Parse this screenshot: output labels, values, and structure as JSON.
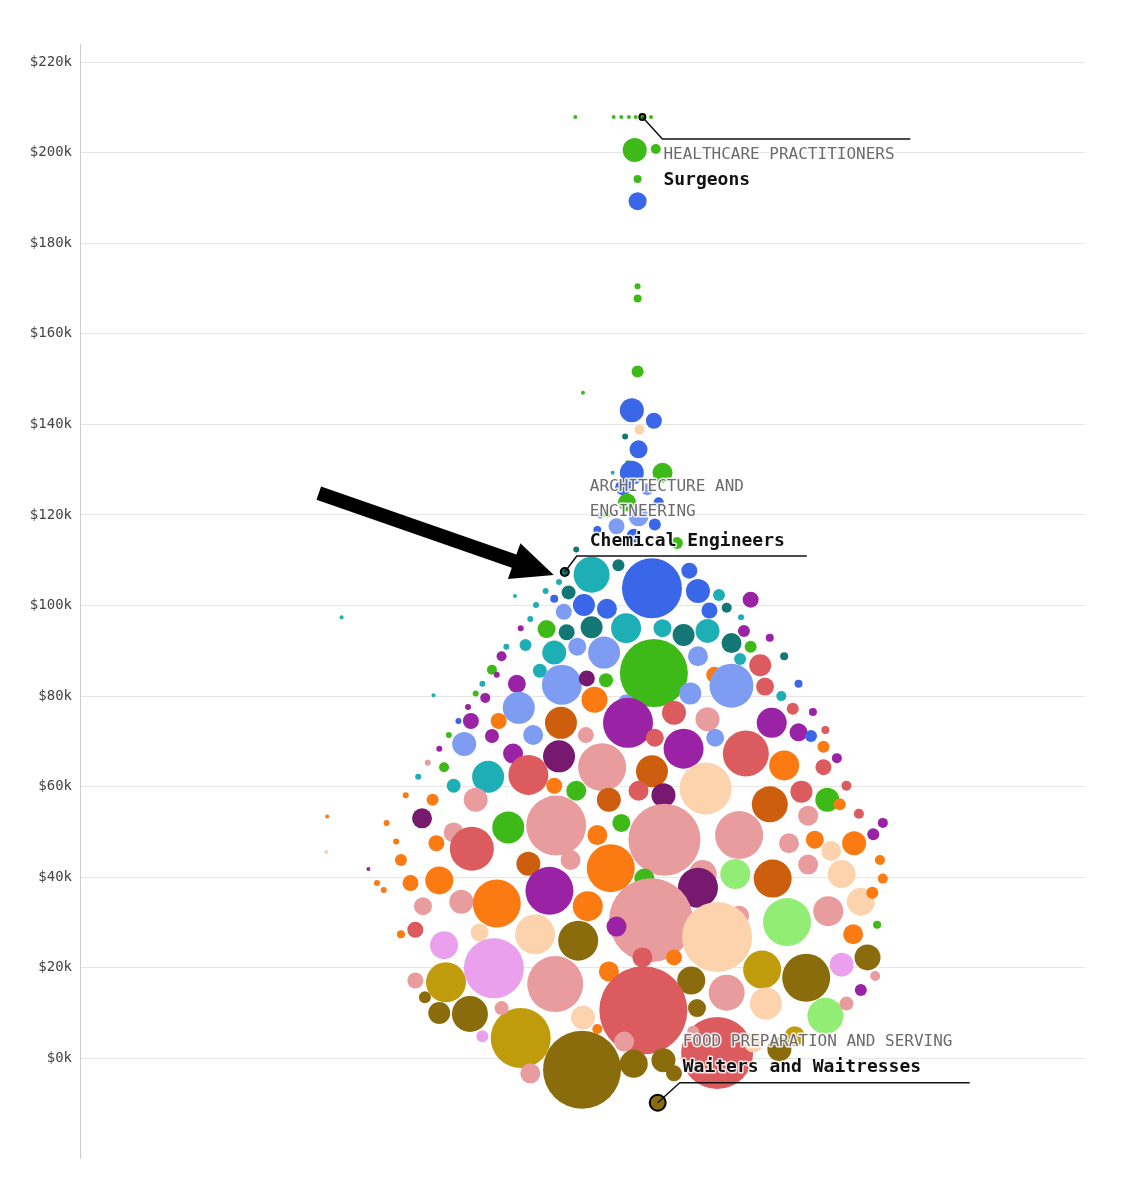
{
  "chart_data": {
    "type": "bubble",
    "grid": true,
    "tick_labels": "y",
    "xlim": [
      0,
      1049
    ],
    "ylim": [
      -22000,
      224000
    ],
    "yticks": [
      {
        "value": 0,
        "label": "$0k"
      },
      {
        "value": 20000,
        "label": "$20k"
      },
      {
        "value": 40000,
        "label": "$40k"
      },
      {
        "value": 60000,
        "label": "$60k"
      },
      {
        "value": 80000,
        "label": "$80k"
      },
      {
        "value": 100000,
        "label": "$100k"
      },
      {
        "value": 120000,
        "label": "$120k"
      },
      {
        "value": 140000,
        "label": "$140k"
      },
      {
        "value": 160000,
        "label": "$160k"
      },
      {
        "value": 180000,
        "label": "$180k"
      },
      {
        "value": 200000,
        "label": "$200k"
      },
      {
        "value": 220000,
        "label": "$220k"
      }
    ],
    "annotations": [
      {
        "category": "HEALTHCARE PRACTITIONERS",
        "label": "Surgeons",
        "x": 587,
        "y": 207900
      },
      {
        "category": "ARCHITECTURE AND ENGINEERING",
        "label": "Chemical Engineers",
        "x": 506,
        "y": 107400
      },
      {
        "category": "FOOD PREPARATION AND SERVING",
        "label": "Waiters and Waitresses",
        "x": 603,
        "y": -9800
      }
    ],
    "x": [
      517,
      557,
      565,
      573,
      580,
      596,
      587,
      579,
      601,
      582,
      582,
      582,
      582,
      582,
      525,
      576,
      599,
      584,
      569,
      583,
      572,
      576,
      608,
      556,
      567,
      592,
      604,
      571,
      543,
      550,
      583,
      560,
      600,
      540,
      578,
      518,
      623,
      562,
      534,
      597,
      506,
      636,
      645,
      510,
      495,
      526,
      550,
      505,
      476,
      454,
      667,
      657,
      675,
      700,
      534,
      570,
      487,
      508,
      608,
      630,
      655,
      693,
      680,
      465,
      519,
      547,
      599,
      645,
      700,
      495,
      440,
      689,
      710,
      480,
      662,
      503,
      430,
      456,
      549,
      529,
      680,
      715,
      637,
      537,
      570,
      620,
      458,
      423,
      732,
      744,
      502,
      437,
      408,
      572,
      655,
      722,
      528,
      473,
      401,
      430,
      600,
      630,
      663,
      750,
      763,
      695,
      500,
      545,
      452,
      776,
      426,
      468,
      597,
      380,
      735,
      776,
      653,
      609,
      583,
      518,
      552,
      495,
      390,
      413,
      368,
      720,
      753,
      780,
      760,
      793,
      497,
      610,
      447,
      540,
      390,
      357,
      565,
      688,
      808,
      740,
      409,
      372,
      767,
      784,
      828,
      335,
      554,
      468,
      512,
      723,
      795,
      684,
      650,
      375,
      345,
      589,
      645,
      760,
      815,
      781,
      490,
      435,
      530,
      398,
      358,
      596,
      738,
      827,
      560,
      688,
      665,
      475,
      520,
      380,
      417,
      350,
      807,
      822,
      432,
      496,
      712,
      758,
      716,
      638,
      675,
      382,
      552,
      587,
      795,
      620,
      778,
      588,
      460,
      407,
      375,
      524,
      665,
      470,
      578,
      609,
      746,
      730,
      703,
      420,
      525,
      644,
      568,
      273,
      369,
      258,
      257,
      301,
      310,
      317,
      335,
      320,
      330,
      340,
      353,
      363,
      375,
      385,
      395,
      405,
      413,
      420,
      435,
      445,
      460,
      470,
      486,
      500,
      690,
      720,
      735,
      750,
      765,
      778,
      790,
      800,
      813,
      838,
      835,
      838,
      832,
      830,
      815,
      800,
      440,
      350,
      360,
      620,
      540,
      640,
      603
    ],
    "values": [
      207900,
      207900,
      207900,
      207900,
      207900,
      207900,
      207900,
      200600,
      200800,
      194200,
      189300,
      170500,
      167800,
      151700,
      147000,
      143100,
      140800,
      138800,
      137300,
      134500,
      131400,
      129300,
      129300,
      129300,
      126100,
      125700,
      122800,
      122800,
      119900,
      120300,
      119700,
      117500,
      117900,
      116700,
      115400,
      112400,
      113800,
      108900,
      106800,
      103800,
      107400,
      107700,
      103200,
      102900,
      101500,
      100100,
      99300,
      98600,
      100100,
      102100,
      102300,
      98900,
      99500,
      101300,
      95200,
      95000,
      94800,
      94100,
      95000,
      93500,
      94400,
      94400,
      91700,
      91300,
      90900,
      89600,
      85100,
      88800,
      90900,
      89600,
      88800,
      88200,
      86800,
      85600,
      84700,
      82500,
      85800,
      82700,
      83500,
      83900,
      82300,
      82100,
      80600,
      79200,
      78600,
      76300,
      77400,
      79600,
      80000,
      77200,
      74100,
      74500,
      74500,
      74100,
      74900,
      74100,
      71400,
      71400,
      69400,
      71200,
      70800,
      68400,
      70800,
      72000,
      71200,
      67300,
      66700,
      64300,
      67300,
      68800,
      62200,
      62600,
      63400,
      64300,
      64700,
      64300,
      59600,
      58100,
      59100,
      59100,
      57100,
      60200,
      60200,
      57100,
      57100,
      56100,
      58900,
      57100,
      53600,
      56100,
      51400,
      48300,
      51000,
      49300,
      49900,
      53000,
      52000,
      49300,
      47500,
      47500,
      46300,
      47500,
      48300,
      45800,
      49500,
      43800,
      42000,
      43000,
      43800,
      39700,
      40700,
      40700,
      40700,
      39300,
      38700,
      39700,
      37700,
      42800,
      34600,
      32500,
      37000,
      34200,
      33600,
      34600,
      33600,
      30500,
      30100,
      36600,
      29100,
      31500,
      26800,
      27400,
      26000,
      25000,
      27800,
      28400,
      27400,
      22300,
      19900,
      16400,
      19600,
      17800,
      12100,
      17200,
      14500,
      16800,
      19200,
      22300,
      20700,
      22300,
      9400,
      10600,
      4500,
      9800,
      10000,
      -2500,
      1200,
      -3300,
      -1200,
      -400,
      4900,
      2000,
      3500,
      4900,
      9000,
      11100,
      3700,
      97400,
      80200,
      53400,
      45600,
      41800,
      38700,
      37200,
      27400,
      52000,
      47900,
      58100,
      62200,
      65300,
      68400,
      71400,
      74500,
      77600,
      80600,
      82700,
      84700,
      90900,
      95000,
      97000,
      103200,
      105200,
      97400,
      92900,
      88800,
      82700,
      76500,
      72500,
      66300,
      60200,
      54000,
      52000,
      43800,
      39700,
      29500,
      18200,
      15100,
      12100,
      11100,
      17200,
      13500,
      -3300,
      6500,
      5900,
      -9800
    ],
    "sizes": [
      2,
      2,
      2,
      2,
      2,
      2,
      3,
      12,
      5,
      4,
      9,
      3,
      4,
      6,
      2,
      12,
      8,
      5,
      3,
      9,
      3,
      12,
      10,
      2,
      8,
      6,
      5,
      9,
      3,
      4,
      10,
      8,
      6,
      4,
      7,
      3,
      6,
      6,
      18,
      30,
      4,
      8,
      12,
      7,
      4,
      11,
      10,
      8,
      3,
      2,
      6,
      8,
      5,
      8,
      11,
      15,
      9,
      8,
      9,
      11,
      12,
      6,
      10,
      6,
      9,
      16,
      34,
      10,
      6,
      12,
      5,
      6,
      11,
      7,
      8,
      20,
      5,
      9,
      7,
      8,
      22,
      9,
      11,
      13,
      8,
      12,
      16,
      5,
      5,
      6,
      16,
      8,
      8,
      25,
      12,
      15,
      8,
      10,
      12,
      7,
      9,
      20,
      9,
      9,
      6,
      23,
      16,
      24,
      10,
      6,
      16,
      20,
      16,
      5,
      15,
      8,
      26,
      12,
      10,
      10,
      12,
      8,
      7,
      12,
      6,
      18,
      11,
      12,
      10,
      6,
      30,
      36,
      16,
      10,
      10,
      10,
      9,
      24,
      12,
      10,
      22,
      8,
      9,
      10,
      6,
      6,
      24,
      12,
      10,
      19,
      14,
      15,
      14,
      14,
      8,
      10,
      20,
      10,
      14,
      15,
      24,
      24,
      15,
      12,
      9,
      42,
      24,
      6,
      10,
      10,
      35,
      20,
      20,
      14,
      9,
      8,
      10,
      13,
      30,
      28,
      19,
      24,
      16,
      14,
      18,
      20,
      10,
      10,
      12,
      8,
      18,
      44,
      30,
      18,
      11,
      39,
      36,
      10,
      14,
      12,
      10,
      12,
      10,
      6,
      12,
      9,
      10,
      2,
      2,
      2,
      2,
      2,
      3,
      3,
      4,
      3,
      3,
      3,
      3,
      3,
      3,
      3,
      3,
      3,
      3,
      3,
      3,
      3,
      3,
      3,
      3,
      3,
      3,
      4,
      4,
      4,
      4,
      4,
      5,
      5,
      5,
      5,
      5,
      5,
      4,
      5,
      6,
      7,
      7,
      8,
      6,
      8,
      5,
      6,
      8,
      33
    ],
    "colors": [
      "#3dba17",
      "#3dba17",
      "#3dba17",
      "#3dba17",
      "#3dba17",
      "#3dba17",
      "#3dba17",
      "#3dba17",
      "#3dba17",
      "#3dba17",
      "#3a66e8",
      "#3dba17",
      "#3dba17",
      "#3dba17",
      "#3dba17",
      "#3a66e8",
      "#3a66e8",
      "#fdd3ae",
      "#137775",
      "#3a66e8",
      "#3dba17",
      "#3a66e8",
      "#3dba17",
      "#1eafb6",
      "#3a66e8",
      "#7e9cf2",
      "#3a66e8",
      "#3dba17",
      "#3a66e8",
      "#3dba17",
      "#7e9cf2",
      "#7e9cf2",
      "#3a66e8",
      "#3a66e8",
      "#3a66e8",
      "#137775",
      "#3dba17",
      "#137775",
      "#1eafb6",
      "#3a66e8",
      "#137775",
      "#3a66e8",
      "#3a66e8",
      "#137775",
      "#3a66e8",
      "#3a66e8",
      "#3a66e8",
      "#7e9cf2",
      "#1eafb6",
      "#1eafb6",
      "#1eafb6",
      "#3a66e8",
      "#137775",
      "#9a22a5",
      "#137775",
      "#1eafb6",
      "#3dba17",
      "#137775",
      "#1eafb6",
      "#137775",
      "#1eafb6",
      "#9a22a5",
      "#137775",
      "#1eafb6",
      "#7e9cf2",
      "#7e9cf2",
      "#3dba17",
      "#7e9cf2",
      "#3dba17",
      "#1eafb6",
      "#9a22a5",
      "#1eafb6",
      "#db5b5f",
      "#1eafb6",
      "#fb7a12",
      "#7e9cf2",
      "#3dba17",
      "#9a22a5",
      "#3dba17",
      "#76196f",
      "#7e9cf2",
      "#db5b5f",
      "#7e9cf2",
      "#fb7a12",
      "#7e9cf2",
      "#db5b5f",
      "#7e9cf2",
      "#9a22a5",
      "#1eafb6",
      "#db5b5f",
      "#cc5e0d",
      "#fb7a12",
      "#9a22a5",
      "#9a22a5",
      "#e89c9e",
      "#9a22a5",
      "#e89c9e",
      "#7e9cf2",
      "#7e9cf2",
      "#9a22a5",
      "#db5b5f",
      "#9a22a5",
      "#7e9cf2",
      "#9a22a5",
      "#3a66e8",
      "#db5b5f",
      "#76196f",
      "#e89c9e",
      "#9a22a5",
      "#fb7a12",
      "#1eafb6",
      "#db5b5f",
      "#cc5e0d",
      "#3dba17",
      "#fb7a12",
      "#db5b5f",
      "#fdd3ae",
      "#76196f",
      "#db5b5f",
      "#3dba17",
      "#cc5e0d",
      "#fb7a12",
      "#1eafb6",
      "#e89c9e",
      "#fb7a12",
      "#cc5e0d",
      "#db5b5f",
      "#3dba17",
      "#e89c9e",
      "#fb7a12",
      "#e89c9e",
      "#e89c9e",
      "#3dba17",
      "#fb7a12",
      "#e89c9e",
      "#76196f",
      "#3dba17",
      "#e89c9e",
      "#fb7a12",
      "#e89c9e",
      "#db5b5f",
      "#fb7a12",
      "#fb7a12",
      "#fdd3ae",
      "#9a22a5",
      "#fb7a12",
      "#fb7a12",
      "#cc5e0d",
      "#e89c9e",
      "#cc5e0d",
      "#fdd3ae",
      "#92ed74",
      "#e89c9e",
      "#fb7a12",
      "#fb7a12",
      "#3dba17",
      "#76196f",
      "#e89c9e",
      "#fdd3ae",
      "#e89c9e",
      "#9a22a5",
      "#fb7a12",
      "#fb7a12",
      "#e89c9e",
      "#e89c9e",
      "#e89c9e",
      "#92ed74",
      "#fb7a12",
      "#9a22a5",
      "#e89c9e",
      "#fdd3ae",
      "#fdd3ae",
      "#8a6c0c",
      "#eaa0ec",
      "#fdd3ae",
      "#db5b5f",
      "#fb7a12",
      "#8a6c0c",
      "#eaa0ec",
      "#e89c9e",
      "#c09b0c",
      "#8a6c0c",
      "#fdd3ae",
      "#8a6c0c",
      "#e89c9e",
      "#c09b0c",
      "#fb7a12",
      "#db5b5f",
      "#eaa0ec",
      "#fb7a12",
      "#92ed74",
      "#db5b5f",
      "#c09b0c",
      "#8a6c0c",
      "#8a6c0c",
      "#8a6c0c",
      "#db5b5f",
      "#e89c9e",
      "#8a6c0c",
      "#8a6c0c",
      "#c09b0c",
      "#8a6c0c",
      "#fdd3ae",
      "#eaa0ec",
      "#fdd3ae",
      "#8a6c0c",
      "#e89c9e",
      "#1eafb6",
      "#1eafb6",
      "#fb7a12",
      "#fdd3ae",
      "#9a22a5",
      "#fb7a12",
      "#fb7a12",
      "#fb7a12",
      "#fb7a12",
      "#fb7a12",
      "#fb7a12",
      "#1eafb6",
      "#e89c9e",
      "#9a22a5",
      "#3dba17",
      "#3a66e8",
      "#9a22a5",
      "#3dba17",
      "#1eafb6",
      "#9a22a5",
      "#1eafb6",
      "#9a22a5",
      "#1eafb6",
      "#1eafb6",
      "#1eafb6",
      "#1eafb6",
      "#9a22a5",
      "#137775",
      "#3a66e8",
      "#9a22a5",
      "#db5b5f",
      "#9a22a5",
      "#db5b5f",
      "#db5b5f",
      "#9a22a5",
      "#fb7a12",
      "#fb7a12",
      "#3dba17",
      "#e89c9e",
      "#9a22a5",
      "#e89c9e",
      "#e89c9e",
      "#e89c9e",
      "#8a6c0c",
      "#8a6c0c",
      "#fb7a12",
      "#e89c9e",
      "#8a6c0c"
    ]
  }
}
